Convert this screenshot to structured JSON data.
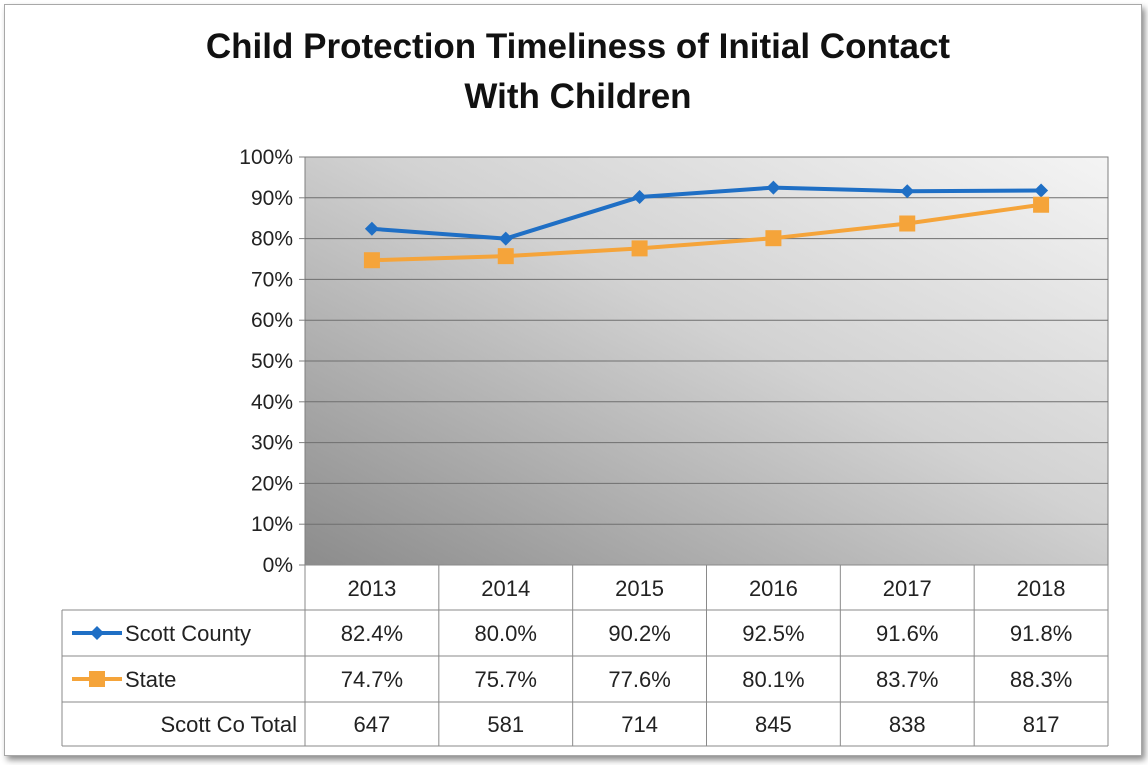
{
  "chart_data": {
    "type": "line",
    "title": "Child Protection Timeliness of Initial Contact With Children",
    "title_lines": [
      "Child Protection Timeliness of Initial Contact",
      "With Children"
    ],
    "xlabel": "",
    "ylabel": "",
    "categories": [
      "2013",
      "2014",
      "2015",
      "2016",
      "2017",
      "2018"
    ],
    "ylim": [
      0,
      100
    ],
    "yticks": [
      "100%",
      "90%",
      "80%",
      "70%",
      "60%",
      "50%",
      "40%",
      "30%",
      "20%",
      "10%",
      "0%"
    ],
    "grid": true,
    "legend": "data-table",
    "series": [
      {
        "name": "Scott County",
        "values": [
          82.4,
          80.0,
          90.2,
          92.5,
          91.6,
          91.8
        ],
        "labels": [
          "82.4%",
          "80.0%",
          "90.2%",
          "92.5%",
          "91.6%",
          "91.8%"
        ],
        "color": "#1F6FC5",
        "marker": "diamond"
      },
      {
        "name": "State",
        "values": [
          74.7,
          75.7,
          77.6,
          80.1,
          83.7,
          88.3
        ],
        "labels": [
          "74.7%",
          "75.7%",
          "77.6%",
          "80.1%",
          "83.7%",
          "88.3%"
        ],
        "color": "#F5A43A",
        "marker": "square"
      }
    ],
    "table_rows": [
      {
        "label": "Scott Co Total",
        "values": [
          "647",
          "581",
          "714",
          "845",
          "838",
          "817"
        ]
      }
    ]
  }
}
